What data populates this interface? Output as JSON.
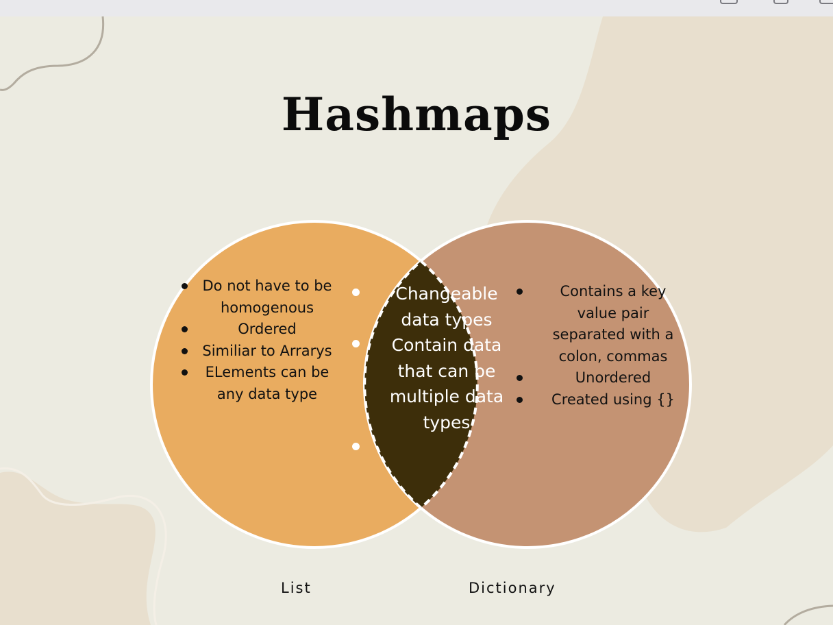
{
  "title": "Hashmaps",
  "colors": {
    "background": "#ecebe1",
    "blob": "#e8dfce",
    "list_circle": "#e9ac60",
    "dictionary_circle": "#c49373",
    "overlap": "#3d2e0a",
    "outline": "#ffffff"
  },
  "list": {
    "label": "List",
    "items": [
      "Do not have to be homogenous",
      "Ordered",
      "Similiar to Arrarys",
      "ELements can be any data type"
    ]
  },
  "dictionary": {
    "label": "Dictionary",
    "items": [
      "Contains a key value pair separated with a colon, commas",
      "Unordered",
      "Created using {}"
    ]
  },
  "overlap": {
    "items": [
      "Changeable data types",
      "Contain data that can be multiple data types"
    ]
  }
}
